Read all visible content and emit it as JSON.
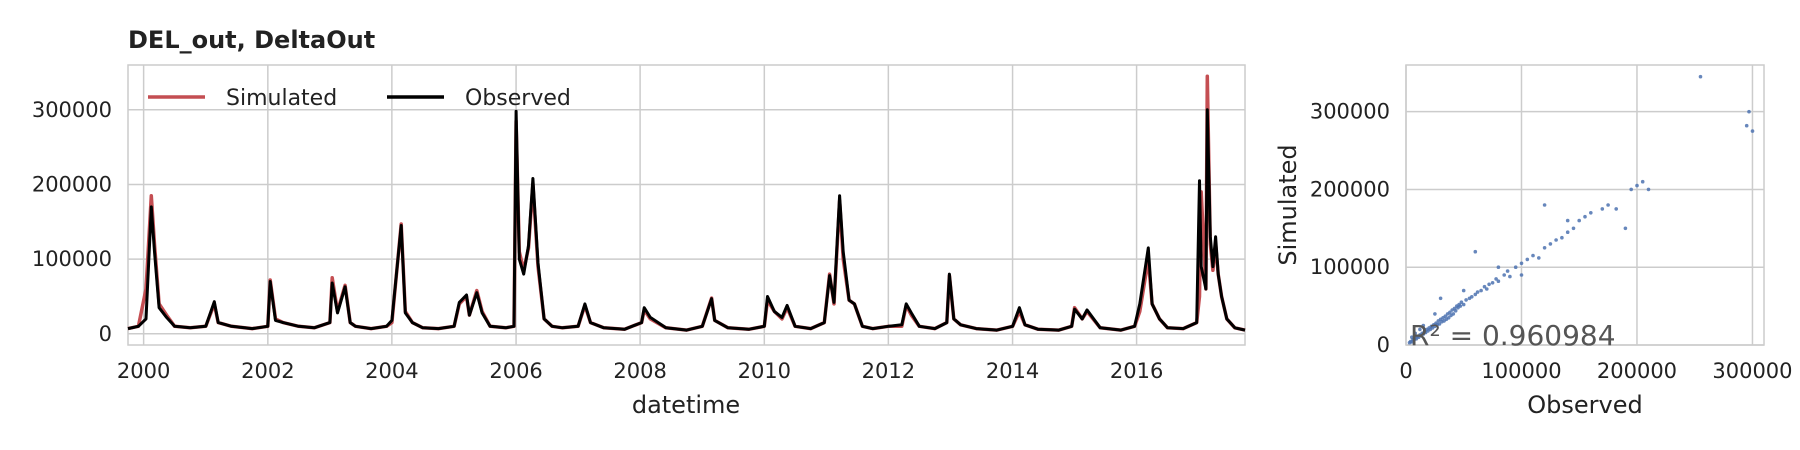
{
  "chart_data": [
    {
      "type": "line",
      "title": "DEL_out, DeltaOut",
      "xlabel": "datetime",
      "ylabel": "",
      "xlim": [
        "1999-10-01",
        "2017-09-30"
      ],
      "ylim": [
        -15000,
        360000
      ],
      "x_ticks": [
        "2000",
        "2002",
        "2004",
        "2006",
        "2008",
        "2010",
        "2012",
        "2014",
        "2016"
      ],
      "y_ticks": [
        "0",
        "100000",
        "200000",
        "300000"
      ],
      "grid": true,
      "legend": {
        "placement": "top-left",
        "entries": [
          "Simulated",
          "Observed"
        ]
      },
      "x": [
        "1999-10-01",
        "1999-12-01",
        "2000-01-15",
        "2000-02-15",
        "2000-03-05",
        "2000-04-01",
        "2000-05-15",
        "2000-07-01",
        "2000-10-01",
        "2001-01-01",
        "2001-02-20",
        "2001-03-15",
        "2001-06-01",
        "2001-10-01",
        "2002-01-01",
        "2002-01-15",
        "2002-02-15",
        "2002-04-01",
        "2002-07-01",
        "2002-10-01",
        "2003-01-01",
        "2003-01-15",
        "2003-02-15",
        "2003-04-01",
        "2003-05-01",
        "2003-06-01",
        "2003-09-01",
        "2003-12-01",
        "2004-01-01",
        "2004-02-25",
        "2004-03-20",
        "2004-05-01",
        "2004-07-01",
        "2004-10-01",
        "2005-01-01",
        "2005-02-01",
        "2005-03-15",
        "2005-04-01",
        "2005-05-15",
        "2005-06-15",
        "2005-08-01",
        "2005-11-01",
        "2005-12-20",
        "2006-01-01",
        "2006-01-20",
        "2006-02-15",
        "2006-03-15",
        "2006-04-10",
        "2006-05-10",
        "2006-06-15",
        "2006-08-01",
        "2006-10-01",
        "2007-01-01",
        "2007-02-10",
        "2007-03-15",
        "2007-06-01",
        "2007-10-01",
        "2008-01-10",
        "2008-01-25",
        "2008-03-01",
        "2008-06-01",
        "2008-10-01",
        "2009-01-01",
        "2009-02-25",
        "2009-03-15",
        "2009-06-01",
        "2009-10-01",
        "2010-01-01",
        "2010-01-20",
        "2010-03-01",
        "2010-04-15",
        "2010-05-15",
        "2010-07-01",
        "2010-10-01",
        "2010-12-20",
        "2011-01-20",
        "2011-02-15",
        "2011-03-20",
        "2011-04-10",
        "2011-05-15",
        "2011-06-15",
        "2011-08-01",
        "2011-10-01",
        "2012-01-01",
        "2012-03-20",
        "2012-04-15",
        "2012-05-15",
        "2012-07-01",
        "2012-10-01",
        "2012-12-10",
        "2012-12-25",
        "2013-01-20",
        "2013-03-01",
        "2013-06-01",
        "2013-10-01",
        "2014-01-01",
        "2014-02-10",
        "2014-03-15",
        "2014-06-01",
        "2014-10-01",
        "2014-12-15",
        "2015-01-01",
        "2015-02-15",
        "2015-03-15",
        "2015-06-01",
        "2015-10-01",
        "2015-12-20",
        "2016-01-20",
        "2016-03-10",
        "2016-04-01",
        "2016-05-15",
        "2016-07-01",
        "2016-10-01",
        "2016-12-20",
        "2017-01-05",
        "2017-01-15",
        "2017-02-12",
        "2017-02-20",
        "2017-03-10",
        "2017-03-25",
        "2017-04-10",
        "2017-04-25",
        "2017-05-15",
        "2017-06-15",
        "2017-08-01",
        "2017-09-30"
      ],
      "series": [
        {
          "name": "Simulated",
          "color": "#c44e52",
          "values": [
            7000,
            10000,
            60000,
            185000,
            120000,
            40000,
            25000,
            10000,
            8000,
            10000,
            40000,
            15000,
            10000,
            7000,
            10000,
            72000,
            20000,
            15000,
            10000,
            8000,
            15000,
            75000,
            30000,
            65000,
            15000,
            10000,
            7000,
            10000,
            15000,
            147000,
            30000,
            15000,
            8000,
            7000,
            10000,
            40000,
            50000,
            25000,
            58000,
            30000,
            10000,
            8000,
            10000,
            285000,
            110000,
            85000,
            115000,
            200000,
            90000,
            20000,
            10000,
            8000,
            10000,
            38000,
            15000,
            8000,
            6000,
            15000,
            32000,
            20000,
            8000,
            5000,
            10000,
            48000,
            18000,
            8000,
            6000,
            10000,
            45000,
            30000,
            20000,
            35000,
            10000,
            7000,
            15000,
            80000,
            40000,
            178000,
            100000,
            45000,
            40000,
            10000,
            7000,
            10000,
            10000,
            38000,
            25000,
            10000,
            7000,
            15000,
            78000,
            20000,
            12000,
            7000,
            5000,
            10000,
            30000,
            12000,
            6000,
            5000,
            10000,
            35000,
            20000,
            30000,
            8000,
            5000,
            10000,
            30000,
            100000,
            40000,
            20000,
            8000,
            7000,
            15000,
            50000,
            190000,
            60000,
            345000,
            120000,
            85000,
            120000,
            80000,
            50000,
            20000,
            8000,
            5000
          ]
        },
        {
          "name": "Observed",
          "color": "#000000",
          "values": [
            7000,
            10000,
            20000,
            170000,
            110000,
            35000,
            22000,
            10000,
            8000,
            10000,
            43000,
            15000,
            10000,
            7000,
            10000,
            70000,
            18000,
            15000,
            10000,
            8000,
            15000,
            68000,
            28000,
            63000,
            15000,
            10000,
            7000,
            10000,
            18000,
            145000,
            28000,
            15000,
            8000,
            7000,
            10000,
            42000,
            52000,
            25000,
            55000,
            28000,
            10000,
            8000,
            10000,
            298000,
            100000,
            80000,
            118000,
            208000,
            95000,
            20000,
            10000,
            8000,
            10000,
            40000,
            15000,
            8000,
            6000,
            15000,
            35000,
            22000,
            8000,
            5000,
            10000,
            47000,
            18000,
            8000,
            6000,
            10000,
            50000,
            30000,
            22000,
            38000,
            10000,
            7000,
            15000,
            78000,
            42000,
            185000,
            110000,
            45000,
            40000,
            10000,
            7000,
            10000,
            12000,
            40000,
            28000,
            10000,
            7000,
            15000,
            80000,
            20000,
            12000,
            7000,
            5000,
            10000,
            35000,
            12000,
            6000,
            5000,
            10000,
            33000,
            20000,
            32000,
            8000,
            5000,
            10000,
            40000,
            115000,
            40000,
            20000,
            8000,
            7000,
            15000,
            205000,
            90000,
            60000,
            300000,
            130000,
            90000,
            130000,
            80000,
            50000,
            20000,
            8000,
            5000
          ]
        }
      ]
    },
    {
      "type": "scatter",
      "title": "",
      "xlabel": "Observed",
      "ylabel": "Simulated",
      "xlim": [
        0,
        310000
      ],
      "ylim": [
        0,
        360000
      ],
      "x_ticks": [
        "0",
        "100000",
        "200000",
        "300000"
      ],
      "y_ticks": [
        "0",
        "100000",
        "200000",
        "300000"
      ],
      "grid": true,
      "color": "#4c72b0",
      "annotation": "R² = 0.960984",
      "points": [
        [
          3000,
          3000
        ],
        [
          4000,
          4500
        ],
        [
          5000,
          4000
        ],
        [
          6000,
          7000
        ],
        [
          7000,
          6500
        ],
        [
          8000,
          9000
        ],
        [
          9000,
          8000
        ],
        [
          10000,
          11000
        ],
        [
          11000,
          10000
        ],
        [
          12000,
          13000
        ],
        [
          13000,
          12000
        ],
        [
          14000,
          15000
        ],
        [
          15000,
          14000
        ],
        [
          16000,
          17000
        ],
        [
          17000,
          16000
        ],
        [
          18000,
          20000
        ],
        [
          19000,
          18000
        ],
        [
          20000,
          22000
        ],
        [
          21000,
          20000
        ],
        [
          22000,
          24000
        ],
        [
          23000,
          22000
        ],
        [
          24000,
          26000
        ],
        [
          25000,
          24000
        ],
        [
          26000,
          28000
        ],
        [
          27000,
          26000
        ],
        [
          28000,
          31000
        ],
        [
          29000,
          27000
        ],
        [
          30000,
          33000
        ],
        [
          31000,
          30000
        ],
        [
          32000,
          35000
        ],
        [
          33000,
          31000
        ],
        [
          34000,
          37000
        ],
        [
          35000,
          33000
        ],
        [
          36000,
          40000
        ],
        [
          37000,
          35000
        ],
        [
          38000,
          42000
        ],
        [
          39000,
          38000
        ],
        [
          40000,
          45000
        ],
        [
          41000,
          40000
        ],
        [
          42000,
          47000
        ],
        [
          43000,
          44000
        ],
        [
          44000,
          50000
        ],
        [
          45000,
          48000
        ],
        [
          46000,
          52000
        ],
        [
          47000,
          50000
        ],
        [
          48000,
          55000
        ],
        [
          50000,
          52000
        ],
        [
          52000,
          58000
        ],
        [
          55000,
          60000
        ],
        [
          57000,
          62000
        ],
        [
          60000,
          65000
        ],
        [
          62000,
          68000
        ],
        [
          65000,
          70000
        ],
        [
          68000,
          75000
        ],
        [
          70000,
          72000
        ],
        [
          72000,
          78000
        ],
        [
          75000,
          80000
        ],
        [
          78000,
          85000
        ],
        [
          80000,
          82000
        ],
        [
          85000,
          90000
        ],
        [
          88000,
          95000
        ],
        [
          90000,
          88000
        ],
        [
          95000,
          100000
        ],
        [
          100000,
          105000
        ],
        [
          105000,
          110000
        ],
        [
          110000,
          115000
        ],
        [
          115000,
          112000
        ],
        [
          120000,
          125000
        ],
        [
          125000,
          130000
        ],
        [
          130000,
          135000
        ],
        [
          135000,
          138000
        ],
        [
          140000,
          145000
        ],
        [
          145000,
          150000
        ],
        [
          150000,
          160000
        ],
        [
          155000,
          165000
        ],
        [
          160000,
          170000
        ],
        [
          170000,
          175000
        ],
        [
          175000,
          180000
        ],
        [
          190000,
          150000
        ],
        [
          195000,
          200000
        ],
        [
          205000,
          210000
        ],
        [
          200000,
          205000
        ],
        [
          120000,
          180000
        ],
        [
          140000,
          160000
        ],
        [
          60000,
          120000
        ],
        [
          80000,
          100000
        ],
        [
          100000,
          90000
        ],
        [
          50000,
          70000
        ],
        [
          30000,
          60000
        ],
        [
          25000,
          40000
        ],
        [
          15000,
          25000
        ],
        [
          12000,
          20000
        ],
        [
          8000,
          15000
        ],
        [
          5000,
          10000
        ],
        [
          255000,
          345000
        ],
        [
          297000,
          300000
        ],
        [
          300000,
          275000
        ],
        [
          295000,
          282000
        ],
        [
          210000,
          200000
        ],
        [
          182000,
          175000
        ]
      ]
    }
  ]
}
